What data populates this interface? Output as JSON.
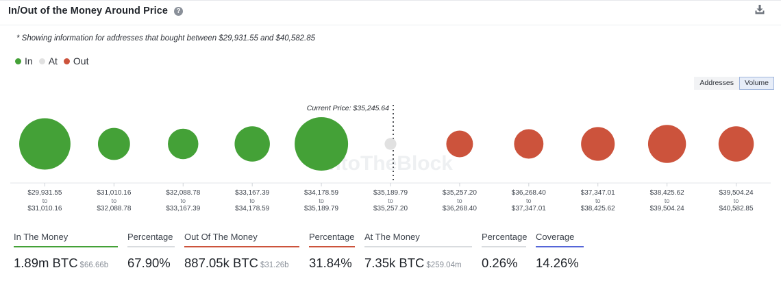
{
  "header": {
    "title": "In/Out of the Money Around Price",
    "help_glyph": "?",
    "help_icon": "question-circle-icon",
    "download_icon": "download-icon"
  },
  "note": "* Showing information for addresses that bought between $29,931.55 and $40,582.85",
  "legend": [
    {
      "label": "In",
      "color": "#44a137"
    },
    {
      "label": "At",
      "color": "#e1e1e1"
    },
    {
      "label": "Out",
      "color": "#cc533c"
    }
  ],
  "toggle": {
    "addresses_label": "Addresses",
    "volume_label": "Volume",
    "selected": "Volume"
  },
  "colors": {
    "in": "#44a137",
    "at": "#e1e1e1",
    "out": "#cc533c"
  },
  "chart_data": {
    "type": "bubble",
    "metric": "Volume",
    "current_price_label": "Current Price: $35,245.64",
    "current_price": 35245.64,
    "watermark": "IntoTheBlock",
    "ranges": [
      {
        "from": "$29,931.55",
        "to": "$31,010.16",
        "status": "in",
        "relative_size": 0.96
      },
      {
        "from": "$31,010.16",
        "to": "$32,088.78",
        "status": "in",
        "relative_size": 0.6
      },
      {
        "from": "$32,088.78",
        "to": "$33,167.39",
        "status": "in",
        "relative_size": 0.57
      },
      {
        "from": "$33,167.39",
        "to": "$34,178.59",
        "status": "in",
        "relative_size": 0.66
      },
      {
        "from": "$34,178.59",
        "to": "$35,189.79",
        "status": "in",
        "relative_size": 1.0
      },
      {
        "from": "$35,189.79",
        "to": "$35,257.20",
        "status": "at",
        "relative_size": 0.22
      },
      {
        "from": "$35,257.20",
        "to": "$36,268.40",
        "status": "out",
        "relative_size": 0.5
      },
      {
        "from": "$36,268.40",
        "to": "$37,347.01",
        "status": "out",
        "relative_size": 0.55
      },
      {
        "from": "$37,347.01",
        "to": "$38,425.62",
        "status": "out",
        "relative_size": 0.63
      },
      {
        "from": "$38,425.62",
        "to": "$39,504.24",
        "status": "out",
        "relative_size": 0.71
      },
      {
        "from": "$39,504.24",
        "to": "$40,582.85",
        "status": "out",
        "relative_size": 0.66
      }
    ],
    "range_connector": "to"
  },
  "stats": [
    {
      "label": "In The Money",
      "value": "1.89m BTC",
      "sub": "$66.66b",
      "underline": "#44a137"
    },
    {
      "label": "Percentage",
      "value": "67.90%",
      "sub": "",
      "underline": "#d9dcdf"
    },
    {
      "label": "Out Of The Money",
      "value": "887.05k BTC",
      "sub": "$31.26b",
      "underline": "#cc533c"
    },
    {
      "label": "Percentage",
      "value": "31.84%",
      "sub": "",
      "underline": "#d9dcdf"
    },
    {
      "label": "At The Money",
      "value": "7.35k BTC",
      "sub": "$259.04m",
      "underline": "#d9dcdf"
    },
    {
      "label": "Percentage",
      "value": "0.26%",
      "sub": "",
      "underline": "#d9dcdf"
    },
    {
      "label": "Coverage",
      "value": "14.26%",
      "sub": "",
      "underline": "#5566d8"
    }
  ]
}
